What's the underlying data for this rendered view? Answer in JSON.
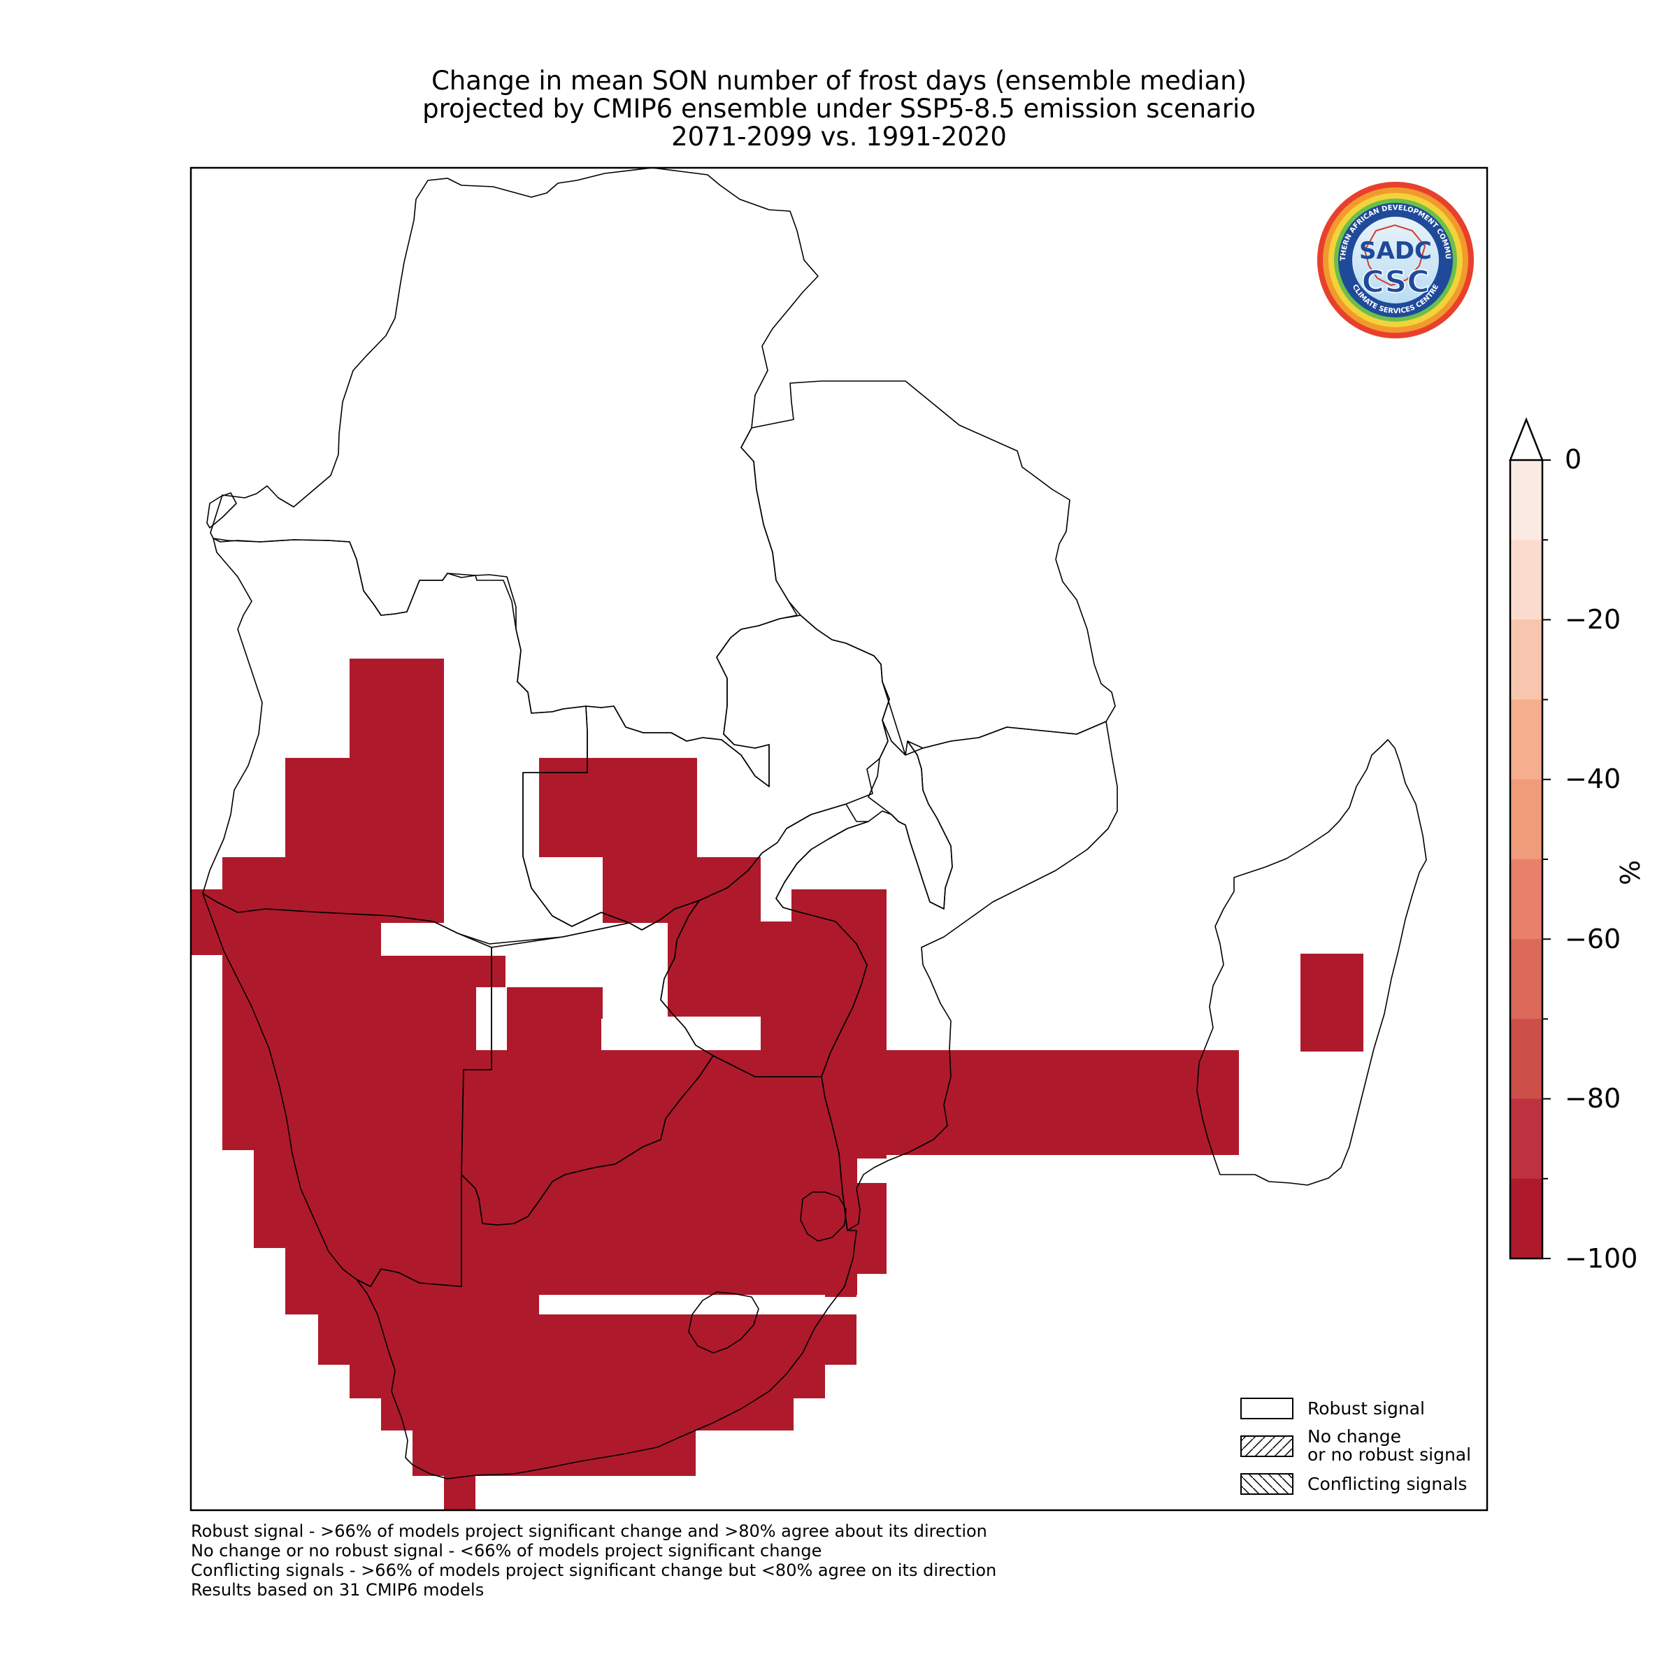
{
  "title": {
    "line1": "Change in mean SON number of frost days (ensemble median)",
    "line2": "projected by CMIP6 ensemble under SSP5-8.5 emission scenario",
    "line3": "2071-2099 vs. 1991-2020"
  },
  "logo": {
    "center_text": "SADC",
    "bottom_text": "CSC",
    "ring_text_top": "SOUTHERN AFRICAN DEVELOPMENT COMMUNITY",
    "ring_text_bottom": "CLIMATE SERVICES CENTRE"
  },
  "colorbar": {
    "unit": "%",
    "ticks": [
      "0",
      "−20",
      "−40",
      "−60",
      "−80",
      "−100"
    ],
    "colors": [
      "#fbe9e3",
      "#fbdbcd",
      "#f8c5ae",
      "#f5ae8e",
      "#f09b79",
      "#e8806a",
      "#db6a5a",
      "#cd4f4a",
      "#bd323e",
      "#ae1a2c"
    ]
  },
  "map": {
    "fill_color": "#ae1a2c"
  },
  "legend": {
    "robust": "Robust signal",
    "nochange_line1": "No change",
    "nochange_line2": "or no robust signal",
    "conflicting": "Conflicting signals"
  },
  "notes": {
    "line1": "Robust signal - >66% of models project significant change and >80% agree about its direction",
    "line2": "No change or no robust signal - <66% of models project significant change",
    "line3": "Conflicting signals - >66% of models project significant change but <80% agree on its direction",
    "line4": "Results based on 31 CMIP6 models"
  }
}
